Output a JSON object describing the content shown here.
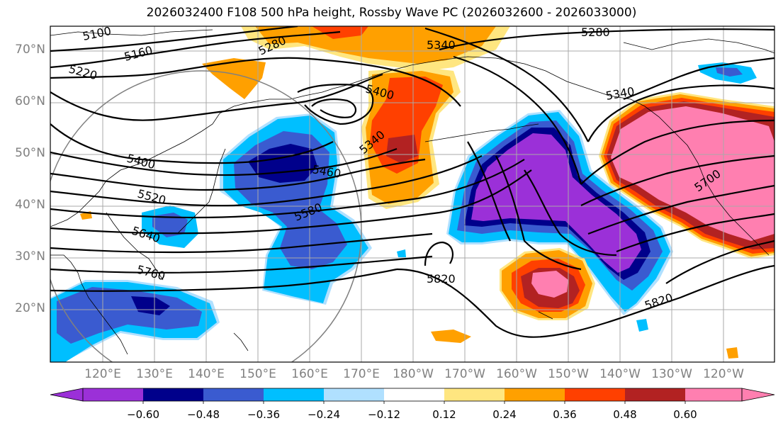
{
  "title": "2026032400 F108 500 hPa height, Rossby Wave PC (2026032600 - 2026033000)",
  "lat_labels": [
    "70°N",
    "60°N",
    "50°N",
    "40°N",
    "30°N",
    "20°N"
  ],
  "lon_labels": [
    "120°E",
    "130°E",
    "140°E",
    "150°E",
    "160°E",
    "170°E",
    "180°W",
    "170°W",
    "160°W",
    "150°W",
    "140°W",
    "130°W",
    "120°W"
  ],
  "height_contour_labels": [
    "5100",
    "5160",
    "5220",
    "5280",
    "5280",
    "5340",
    "5340",
    "5340",
    "5400",
    "5400",
    "5460",
    "5520",
    "5580",
    "5640",
    "5700",
    "5760",
    "5820",
    "5820"
  ],
  "colorbar": {
    "ticks": [
      "−0.60",
      "−0.48",
      "−0.36",
      "−0.24",
      "−0.12",
      "0.12",
      "0.24",
      "0.36",
      "0.48",
      "0.60"
    ],
    "colors": [
      "#9b30d8",
      "#00008b",
      "#3a5bd0",
      "#00bfff",
      "#b0e0ff",
      "#ffffff",
      "#ffe680",
      "#ffa000",
      "#ff4000",
      "#b22222",
      "#ff7fb0"
    ]
  },
  "colors": {
    "purple": "#9b30d8",
    "navy": "#00008b",
    "royal": "#3a5bd0",
    "sky": "#00bfff",
    "pale_blue": "#b0e0ff",
    "yellow": "#ffe680",
    "orange": "#ffa000",
    "red_orange": "#ff4000",
    "dark_red": "#b22222",
    "pink": "#ff7fb0"
  }
}
